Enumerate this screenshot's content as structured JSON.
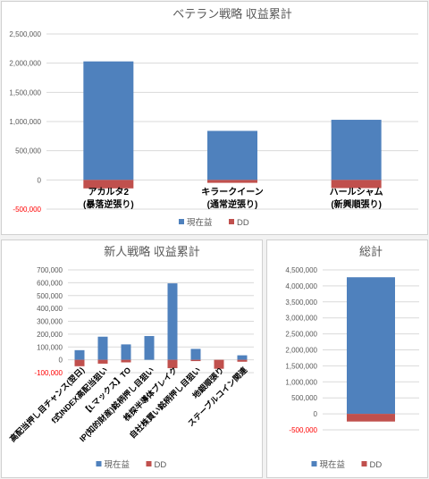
{
  "chart_data": [
    {
      "type": "bar",
      "title": "ベテラン戦略 収益累計",
      "categories": [
        "アカルタ2\n(暴落逆張り)",
        "キラークイーン\n(通常逆張り)",
        "ハールシャム\n(新興順張り)"
      ],
      "series": [
        {
          "name": "現在益",
          "values": [
            2030000,
            840000,
            1030000
          ]
        },
        {
          "name": "DD",
          "values": [
            -145000,
            -50000,
            -140000
          ]
        }
      ],
      "ylim": [
        -500000,
        2500000
      ],
      "yticks": [
        -500000,
        0,
        500000,
        1000000,
        1500000,
        2000000,
        2500000
      ],
      "ytick_labels": [
        "-500,000",
        "0",
        "500,000",
        "1,000,000",
        "1,500,000",
        "2,000,000",
        "2,500,000"
      ],
      "grid": true,
      "legend": "bottom"
    },
    {
      "type": "bar",
      "title": "新人戦略 収益累計",
      "categories": [
        "高配当押し目チャンス(翌日)",
        "f式INDEX高配当狙い",
        "【Lマックス】TO",
        "IP(知的財産)銘柄押し目狙い",
        "株探半導体ブレイク",
        "自社株買い銘柄押し目狙い",
        "地銀順張り",
        "ステーブルコイン関連"
      ],
      "series": [
        {
          "name": "現在益",
          "values": [
            75000,
            180000,
            120000,
            185000,
            595000,
            85000,
            0,
            35000
          ]
        },
        {
          "name": "DD",
          "values": [
            -50000,
            -30000,
            -20000,
            0,
            -65000,
            -10000,
            -70000,
            -15000
          ]
        }
      ],
      "ylim": [
        -100000,
        700000
      ],
      "yticks": [
        -100000,
        0,
        100000,
        200000,
        300000,
        400000,
        500000,
        600000,
        700000
      ],
      "ytick_labels": [
        "-100,000",
        "0",
        "100,000",
        "200,000",
        "300,000",
        "400,000",
        "500,000",
        "600,000",
        "700,000"
      ],
      "grid": true,
      "legend": "bottom"
    },
    {
      "type": "bar",
      "title": "総計",
      "categories": [
        ""
      ],
      "series": [
        {
          "name": "現在益",
          "values": [
            4270000
          ]
        },
        {
          "name": "DD",
          "values": [
            -240000
          ]
        }
      ],
      "ylim": [
        -500000,
        4500000
      ],
      "yticks": [
        -500000,
        0,
        500000,
        1000000,
        1500000,
        2000000,
        2500000,
        3000000,
        3500000,
        4000000,
        4500000
      ],
      "ytick_labels": [
        "-500,000",
        "0",
        "500,000",
        "1,000,000",
        "1,500,000",
        "2,000,000",
        "2,500,000",
        "3,000,000",
        "3,500,000",
        "4,000,000",
        "4,500,000"
      ],
      "grid": true,
      "legend": "bottom"
    }
  ],
  "colors": {
    "profit": "#4f81bd",
    "dd": "#c0504d",
    "negative_tick": "#ff0000"
  }
}
